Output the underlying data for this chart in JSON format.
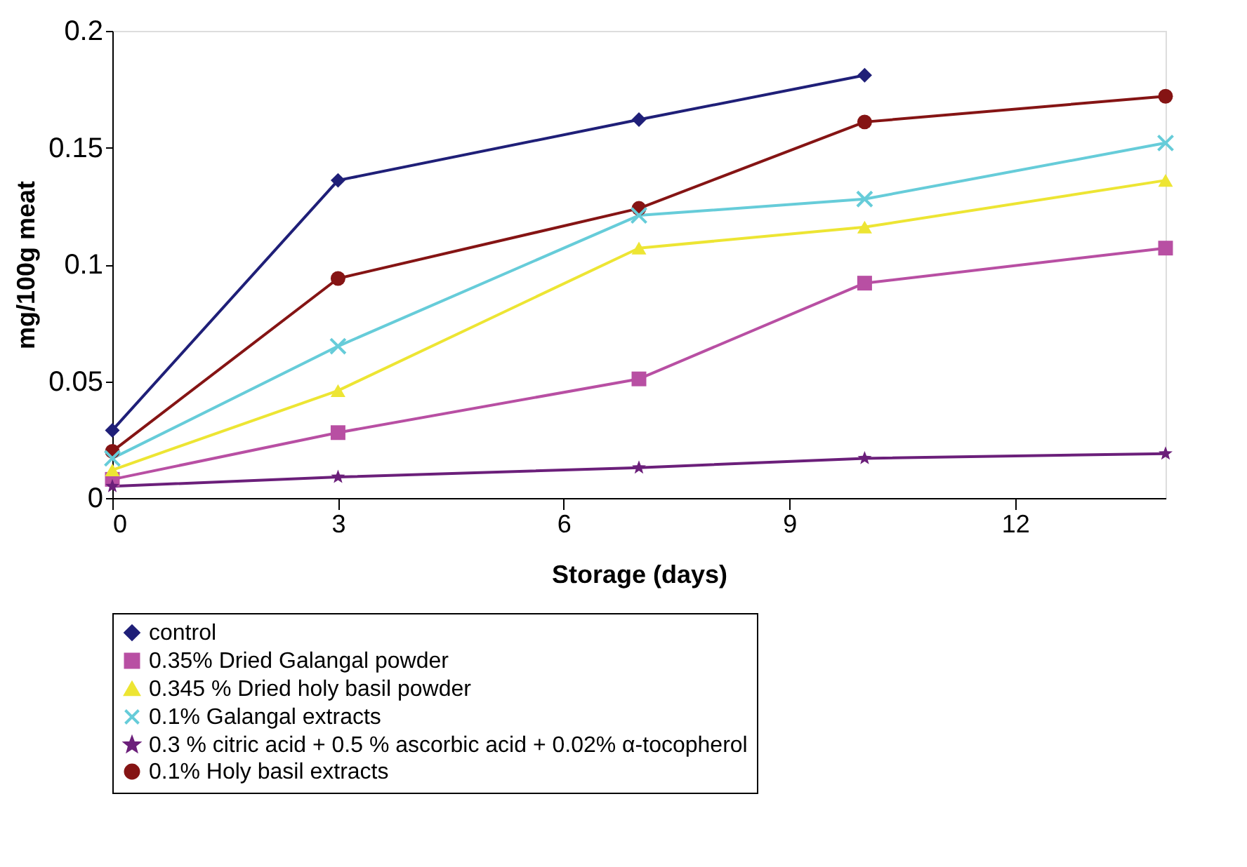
{
  "chart_data": {
    "type": "line",
    "xlabel": "Storage (days)",
    "ylabel": "mg/100g meat",
    "x": [
      0,
      3,
      7,
      10,
      14
    ],
    "xlim": [
      0,
      14
    ],
    "xticks": [
      0,
      3,
      6,
      9,
      12
    ],
    "ylim": [
      0,
      0.2
    ],
    "yticks": [
      0,
      0.05,
      0.1,
      0.15,
      0.2
    ],
    "grid": false,
    "legend": "bottom",
    "line_style": "solid",
    "series": [
      {
        "name": "control",
        "color": "#1f1f78",
        "marker": "diamond",
        "values": [
          0.029,
          0.136,
          0.162,
          0.181,
          null
        ]
      },
      {
        "name": "0.35% Dried Galangal powder",
        "color": "#b84fa3",
        "marker": "square",
        "values": [
          0.008,
          0.028,
          0.051,
          0.092,
          0.107
        ]
      },
      {
        "name": "0.345 % Dried holy basil powder",
        "color": "#ede533",
        "marker": "triangle",
        "values": [
          0.012,
          0.046,
          0.107,
          0.116,
          0.136
        ]
      },
      {
        "name": "0.1% Galangal extracts",
        "color": "#66ccd9",
        "marker": "cross",
        "values": [
          0.017,
          0.065,
          0.121,
          0.128,
          0.152
        ]
      },
      {
        "name": "0.3 % citric acid + 0.5 % ascorbic acid + 0.02% α-tocopherol",
        "color": "#6b1f7a",
        "marker": "star",
        "values": [
          0.005,
          0.009,
          0.013,
          0.017,
          0.019
        ]
      },
      {
        "name": "0.1% Holy basil extracts",
        "color": "#851414",
        "marker": "circle",
        "values": [
          0.02,
          0.094,
          0.124,
          0.161,
          0.172
        ]
      }
    ]
  }
}
